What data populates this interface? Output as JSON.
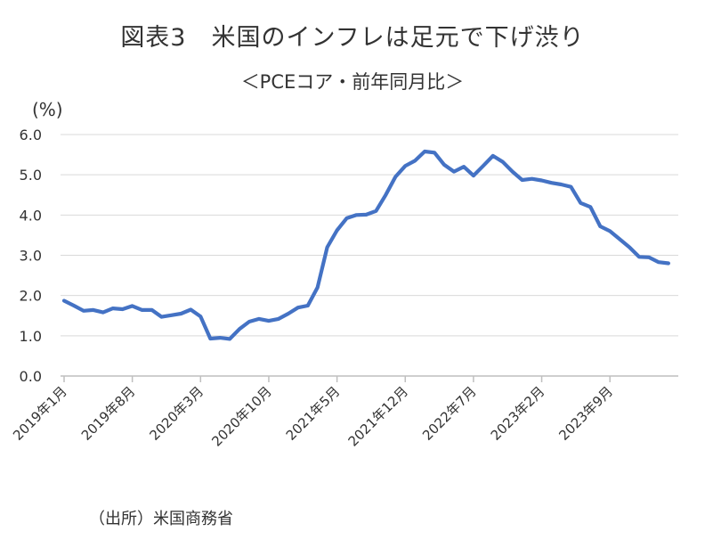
{
  "title": "図表3　米国のインフレは足元で下げ渋り",
  "subtitle": "＜PCEコア・前年同月比＞",
  "source": "（出所）米国商務省",
  "chart_data": {
    "type": "line",
    "yunit": "(%)",
    "ylim": [
      0,
      6
    ],
    "yticks": [
      "0.0",
      "1.0",
      "2.0",
      "3.0",
      "4.0",
      "5.0",
      "6.0"
    ],
    "grid": true,
    "legend": "none",
    "x_tick_labels": [
      "2019年1月",
      "2019年8月",
      "2020年3月",
      "2020年10月",
      "2021年5月",
      "2021年12月",
      "2022年7月",
      "2023年2月",
      "2023年9月"
    ],
    "x_tick_month_index": [
      0,
      7,
      14,
      21,
      28,
      35,
      42,
      49,
      56
    ],
    "series": [
      {
        "color": "#4472C4",
        "x": [
          "2019-01",
          "2019-02",
          "2019-03",
          "2019-04",
          "2019-05",
          "2019-06",
          "2019-07",
          "2019-08",
          "2019-09",
          "2019-10",
          "2019-11",
          "2019-12",
          "2020-01",
          "2020-02",
          "2020-03",
          "2020-04",
          "2020-05",
          "2020-06",
          "2020-07",
          "2020-08",
          "2020-09",
          "2020-10",
          "2020-11",
          "2020-12",
          "2021-01",
          "2021-02",
          "2021-03",
          "2021-04",
          "2021-05",
          "2021-06",
          "2021-07",
          "2021-08",
          "2021-09",
          "2021-10",
          "2021-11",
          "2021-12",
          "2022-01",
          "2022-02",
          "2022-03",
          "2022-04",
          "2022-05",
          "2022-06",
          "2022-07",
          "2022-08",
          "2022-09",
          "2022-10",
          "2022-11",
          "2022-12",
          "2023-01",
          "2023-02",
          "2023-03",
          "2023-04",
          "2023-05",
          "2023-06",
          "2023-07",
          "2023-08",
          "2023-09",
          "2023-10",
          "2023-11",
          "2023-12",
          "2024-01",
          "2024-02",
          "2024-03"
        ],
        "values": [
          1.87,
          1.75,
          1.62,
          1.64,
          1.58,
          1.68,
          1.66,
          1.74,
          1.64,
          1.64,
          1.47,
          1.51,
          1.55,
          1.65,
          1.48,
          0.93,
          0.95,
          0.92,
          1.17,
          1.35,
          1.42,
          1.37,
          1.42,
          1.55,
          1.7,
          1.75,
          2.2,
          3.2,
          3.62,
          3.92,
          4.0,
          4.01,
          4.1,
          4.5,
          4.95,
          5.22,
          5.35,
          5.58,
          5.55,
          5.25,
          5.08,
          5.2,
          4.98,
          5.22,
          5.47,
          5.32,
          5.08,
          4.87,
          4.9,
          4.86,
          4.8,
          4.76,
          4.7,
          4.3,
          4.2,
          3.72,
          3.6,
          3.4,
          3.2,
          2.96,
          2.95,
          2.83,
          2.8
        ]
      }
    ]
  }
}
